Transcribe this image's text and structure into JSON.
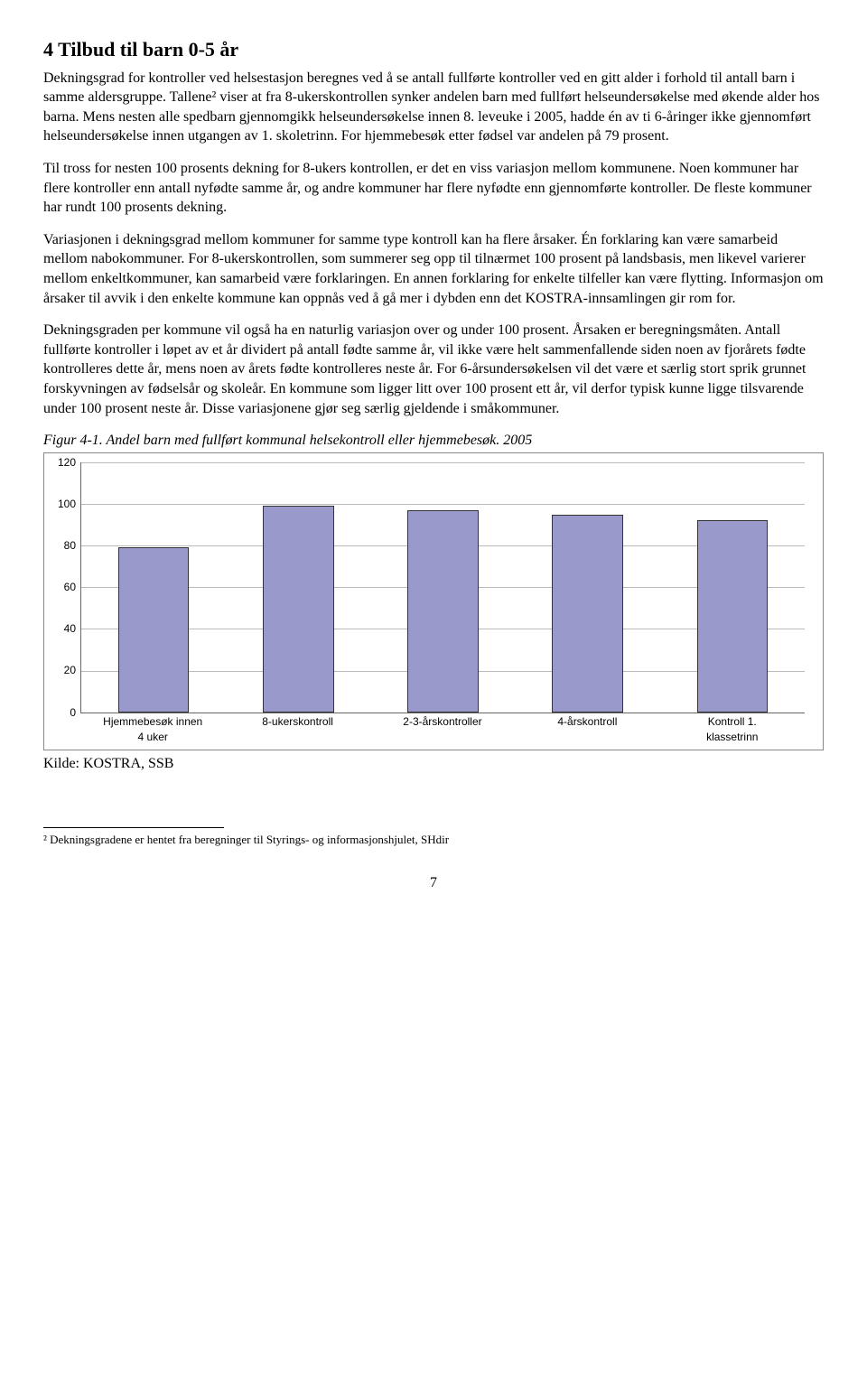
{
  "heading": "4  Tilbud til barn 0-5 år",
  "paragraphs": [
    "Dekningsgrad for kontroller ved helsestasjon beregnes ved å se antall fullførte kontroller ved en gitt alder i forhold til antall barn i samme aldersgruppe. Tallene² viser at fra 8-ukerskontrollen synker andelen barn med fullført helseundersøkelse med økende alder hos barna. Mens nesten alle spedbarn gjennomgikk helseundersøkelse innen 8. leveuke i 2005, hadde én av ti 6-åringer ikke gjennomført helseundersøkelse innen utgangen av 1. skoletrinn. For hjemmebesøk etter fødsel var andelen på 79 prosent.",
    "Til tross for nesten 100 prosents dekning for 8-ukers kontrollen, er det en viss variasjon mellom kommunene. Noen kommuner har flere kontroller enn antall nyfødte samme år, og andre kommuner har flere nyfødte enn gjennomførte kontroller. De fleste kommuner har rundt 100 prosents dekning.",
    "Variasjonen i dekningsgrad mellom kommuner for samme type kontroll kan ha flere årsaker. Én forklaring kan være samarbeid mellom nabokommuner. For 8-ukerskontrollen, som summerer seg opp til tilnærmet 100 prosent på landsbasis, men likevel varierer mellom enkeltkommuner, kan samarbeid være forklaringen. En annen forklaring for enkelte tilfeller kan være flytting. Informasjon om årsaker til avvik i den enkelte kommune kan oppnås ved å gå mer i dybden enn det KOSTRA-innsamlingen gir rom for.",
    "Dekningsgraden per kommune vil også ha en naturlig variasjon over og under 100 prosent. Årsaken er beregningsmåten. Antall fullførte kontroller i løpet av et år dividert på antall fødte samme år, vil ikke være helt sammenfallende siden noen av fjorårets fødte kontrolleres dette år, mens noen av årets fødte kontrolleres neste år. For 6-årsundersøkelsen vil det være et særlig stort sprik grunnet forskyvningen av fødselsår og skoleår. En kommune som ligger litt over 100 prosent ett år, vil derfor typisk kunne ligge tilsvarende under 100 prosent neste år. Disse variasjonene gjør seg særlig gjeldende i småkommuner."
  ],
  "figure_title": "Figur 4-1. Andel barn med fullført kommunal helsekontroll eller hjemmebesøk. 2005",
  "chart": {
    "type": "bar",
    "categories": [
      "Hjemmebesøk innen 4 uker",
      "8-ukerskontroll",
      "2-3-årskontroller",
      "4-årskontroll",
      "Kontroll 1. klassetrinn"
    ],
    "values": [
      79,
      99,
      97,
      95,
      92
    ],
    "bar_color": "#9999cc",
    "bar_border": "#333333",
    "ylim": [
      0,
      120
    ],
    "ytick_step": 20,
    "yticks": [
      0,
      20,
      40,
      60,
      80,
      100,
      120
    ],
    "grid_color": "#bbbbbb",
    "background_color": "#ffffff",
    "label_fontsize": 12,
    "bar_width": 0.7
  },
  "source_label": "Kilde: KOSTRA, SSB",
  "footnote": "² Dekningsgradene er hentet fra beregninger til Styrings- og informasjonshjulet, SHdir",
  "page_number": "7"
}
